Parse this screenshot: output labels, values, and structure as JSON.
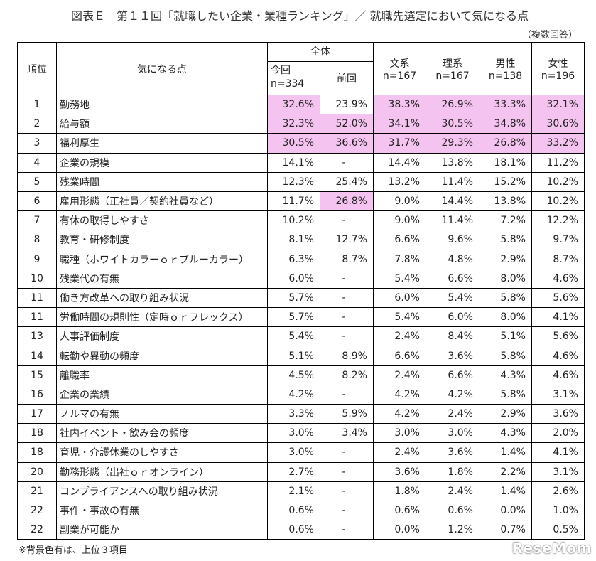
{
  "title": "図表Ｅ　第１１回「就職したい企業・業種ランキング」／ 就職先選定において気になる点",
  "subtitle": "（複数回答）",
  "header": {
    "rank": "順位",
    "item": "気になる点",
    "overall": "全体",
    "current": "今回",
    "current_n": "n=334",
    "previous": "前回",
    "bunkei": "文系",
    "bunkei_n": "n=167",
    "rikei": "理系",
    "rikei_n": "n=167",
    "male": "男性",
    "male_n": "n=138",
    "female": "女性",
    "female_n": "n=196"
  },
  "highlight_color": "#f4c3ef",
  "rows": [
    {
      "rank": "1",
      "item": "勤務地",
      "current": "32.6%",
      "previous": "23.9%",
      "bunkei": "38.3%",
      "rikei": "26.9%",
      "male": "33.3%",
      "female": "32.1%",
      "hl": [
        "current",
        "bunkei",
        "rikei",
        "male",
        "female"
      ]
    },
    {
      "rank": "2",
      "item": "給与額",
      "current": "32.3%",
      "previous": "52.0%",
      "bunkei": "34.1%",
      "rikei": "30.5%",
      "male": "34.8%",
      "female": "30.6%",
      "hl": [
        "current",
        "previous",
        "bunkei",
        "rikei",
        "male",
        "female"
      ]
    },
    {
      "rank": "3",
      "item": "福利厚生",
      "current": "30.5%",
      "previous": "36.6%",
      "bunkei": "31.7%",
      "rikei": "29.3%",
      "male": "26.8%",
      "female": "33.2%",
      "hl": [
        "current",
        "previous",
        "bunkei",
        "rikei",
        "male",
        "female"
      ]
    },
    {
      "rank": "4",
      "item": "企業の規模",
      "current": "14.1%",
      "previous": "-",
      "bunkei": "14.4%",
      "rikei": "13.8%",
      "male": "18.1%",
      "female": "11.2%",
      "hl": []
    },
    {
      "rank": "5",
      "item": "残業時間",
      "current": "12.3%",
      "previous": "25.4%",
      "bunkei": "13.2%",
      "rikei": "11.4%",
      "male": "15.2%",
      "female": "10.2%",
      "hl": []
    },
    {
      "rank": "6",
      "item": "雇用形態（正社員／契約社員など）",
      "current": "11.7%",
      "previous": "26.8%",
      "bunkei": "9.0%",
      "rikei": "14.4%",
      "male": "13.8%",
      "female": "10.2%",
      "hl": [
        "previous"
      ]
    },
    {
      "rank": "7",
      "item": "有休の取得しやすさ",
      "current": "10.2%",
      "previous": "-",
      "bunkei": "9.0%",
      "rikei": "11.4%",
      "male": "7.2%",
      "female": "12.2%",
      "hl": []
    },
    {
      "rank": "8",
      "item": "教育・研修制度",
      "current": "8.1%",
      "previous": "12.7%",
      "bunkei": "6.6%",
      "rikei": "9.6%",
      "male": "5.8%",
      "female": "9.7%",
      "hl": []
    },
    {
      "rank": "9",
      "item": "職種（ホワイトカラーｏｒブルーカラー）",
      "current": "6.3%",
      "previous": "8.7%",
      "bunkei": "7.8%",
      "rikei": "4.8%",
      "male": "2.9%",
      "female": "8.7%",
      "hl": []
    },
    {
      "rank": "10",
      "item": "残業代の有無",
      "current": "6.0%",
      "previous": "-",
      "bunkei": "5.4%",
      "rikei": "6.6%",
      "male": "8.0%",
      "female": "4.6%",
      "hl": []
    },
    {
      "rank": "11",
      "item": "働き方改革への取り組み状況",
      "current": "5.7%",
      "previous": "-",
      "bunkei": "6.0%",
      "rikei": "5.4%",
      "male": "5.8%",
      "female": "5.6%",
      "hl": []
    },
    {
      "rank": "11",
      "item": "労働時間の規則性（定時ｏｒフレックス）",
      "current": "5.7%",
      "previous": "-",
      "bunkei": "5.4%",
      "rikei": "6.0%",
      "male": "8.0%",
      "female": "4.1%",
      "hl": []
    },
    {
      "rank": "13",
      "item": "人事評価制度",
      "current": "5.4%",
      "previous": "-",
      "bunkei": "2.4%",
      "rikei": "8.4%",
      "male": "5.1%",
      "female": "5.6%",
      "hl": []
    },
    {
      "rank": "14",
      "item": "転勤や異動の頻度",
      "current": "5.1%",
      "previous": "8.9%",
      "bunkei": "6.6%",
      "rikei": "3.6%",
      "male": "5.8%",
      "female": "4.6%",
      "hl": []
    },
    {
      "rank": "15",
      "item": "離職率",
      "current": "4.5%",
      "previous": "8.2%",
      "bunkei": "2.4%",
      "rikei": "6.6%",
      "male": "4.3%",
      "female": "4.6%",
      "hl": []
    },
    {
      "rank": "16",
      "item": "企業の業績",
      "current": "4.2%",
      "previous": "-",
      "bunkei": "4.2%",
      "rikei": "4.2%",
      "male": "5.8%",
      "female": "3.1%",
      "hl": []
    },
    {
      "rank": "17",
      "item": "ノルマの有無",
      "current": "3.3%",
      "previous": "5.9%",
      "bunkei": "4.2%",
      "rikei": "2.4%",
      "male": "2.9%",
      "female": "3.6%",
      "hl": []
    },
    {
      "rank": "18",
      "item": "社内イベント・飲み会の頻度",
      "current": "3.0%",
      "previous": "3.4%",
      "bunkei": "3.0%",
      "rikei": "3.0%",
      "male": "4.3%",
      "female": "2.0%",
      "hl": []
    },
    {
      "rank": "18",
      "item": "育児・介護休業のしやすさ",
      "current": "3.0%",
      "previous": "-",
      "bunkei": "2.4%",
      "rikei": "3.6%",
      "male": "1.4%",
      "female": "4.1%",
      "hl": []
    },
    {
      "rank": "20",
      "item": "勤務形態（出社ｏｒオンライン）",
      "current": "2.7%",
      "previous": "-",
      "bunkei": "3.6%",
      "rikei": "1.8%",
      "male": "2.2%",
      "female": "3.1%",
      "hl": []
    },
    {
      "rank": "21",
      "item": "コンプライアンスへの取り組み状況",
      "current": "2.1%",
      "previous": "-",
      "bunkei": "1.8%",
      "rikei": "2.4%",
      "male": "1.4%",
      "female": "2.6%",
      "hl": []
    },
    {
      "rank": "22",
      "item": "事件・事故の有無",
      "current": "0.6%",
      "previous": "-",
      "bunkei": "0.6%",
      "rikei": "0.6%",
      "male": "0.0%",
      "female": "1.0%",
      "hl": []
    },
    {
      "rank": "22",
      "item": "副業が可能か",
      "current": "0.6%",
      "previous": "-",
      "bunkei": "0.0%",
      "rikei": "1.2%",
      "male": "0.7%",
      "female": "0.5%",
      "hl": []
    }
  ],
  "footnote": "※背景色有は、上位３項目",
  "logo": "ReseMom"
}
